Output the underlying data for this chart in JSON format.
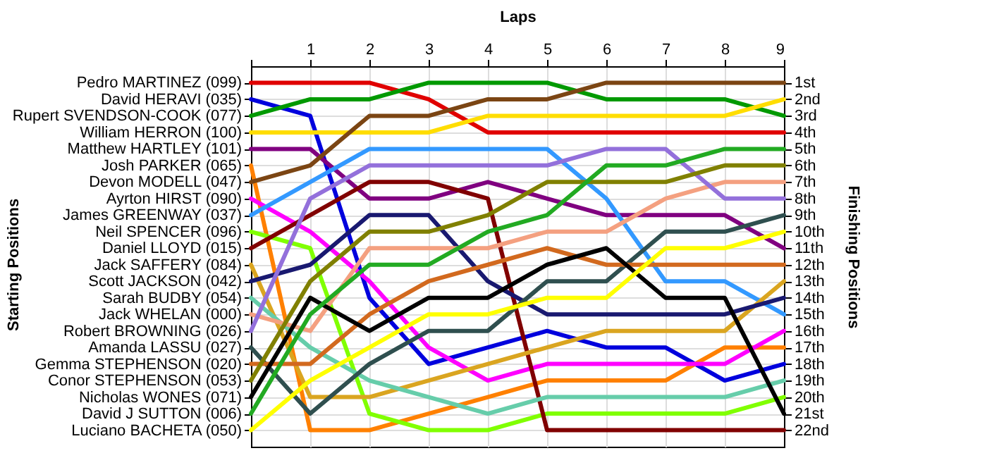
{
  "chart_data": {
    "type": "line",
    "xlabel": "Laps",
    "annotations": [
      "Starting Positions"
    ],
    "y2label": "Finishing Positions",
    "x": [
      0,
      1,
      2,
      3,
      4,
      5,
      6,
      7,
      8,
      9
    ],
    "xlim": [
      0,
      9
    ],
    "xticks": [
      {
        "value": 0,
        "label": null
      },
      1,
      2,
      3,
      4,
      5,
      6,
      7,
      8,
      9
    ],
    "y_categories": [
      "Pedro MARTINEZ (099)",
      "David HERAVI (035)",
      "Rupert SVENDSON-COOK (077)",
      "William HERRON (100)",
      "Matthew HARTLEY (101)",
      "Josh PARKER (065)",
      "Devon MODELL (047)",
      "Ayrton HIRST (090)",
      "James GREENWAY (037)",
      "Neil SPENCER (096)",
      "Daniel LLOYD (015)",
      "Jack SAFFERY (084)",
      "Scott JACKSON (042)",
      "Sarah BUDBY (054)",
      "Jack WHELAN (000)",
      "Robert BROWNING (026)",
      "Amanda LASSU (027)",
      "Gemma STEPHENSON (020)",
      "Conor STEPHENSON (053)",
      "Nicholas WONES (071)",
      "David J SUTTON (006)",
      "Luciano BACHETA (050)"
    ],
    "y2lim": [
      23,
      0
    ],
    "y2ticks": [
      {
        "value": 1,
        "label": "1st"
      },
      {
        "value": 2,
        "label": "2nd"
      },
      {
        "value": 3,
        "label": "3rd"
      },
      {
        "value": 4,
        "label": "4th"
      },
      {
        "value": 5,
        "label": "5th"
      },
      {
        "value": 6,
        "label": "6th"
      },
      {
        "value": 7,
        "label": "7th"
      },
      {
        "value": 8,
        "label": "8th"
      },
      {
        "value": 9,
        "label": "9th"
      },
      {
        "value": 10,
        "label": "10th"
      },
      {
        "value": 11,
        "label": "11th"
      },
      {
        "value": 12,
        "label": "12th"
      },
      {
        "value": 13,
        "label": "13th"
      },
      {
        "value": 14,
        "label": "14th"
      },
      {
        "value": 15,
        "label": "15th"
      },
      {
        "value": 16,
        "label": "16th"
      },
      {
        "value": 17,
        "label": "17th"
      },
      {
        "value": 18,
        "label": "18th"
      },
      {
        "value": 19,
        "label": "19th"
      },
      {
        "value": 20,
        "label": "20th"
      },
      {
        "value": 21,
        "label": "21st"
      },
      {
        "value": 22,
        "label": "22nd"
      }
    ],
    "grid": true,
    "line_style": "solid",
    "series": [
      {
        "axis": "y2",
        "color": "#e00000",
        "values": [
          1,
          1,
          1,
          2,
          4,
          4,
          4,
          4,
          4,
          4
        ]
      },
      {
        "axis": "y2",
        "color": "#0000dd",
        "values": [
          2,
          3,
          14,
          18,
          17,
          16,
          17,
          17,
          19,
          18
        ]
      },
      {
        "axis": "y2",
        "color": "#009900",
        "values": [
          3,
          2,
          2,
          1,
          1,
          1,
          2,
          2,
          2,
          3
        ]
      },
      {
        "axis": "y2",
        "color": "#ffdd00",
        "values": [
          4,
          4,
          4,
          4,
          3,
          3,
          3,
          3,
          3,
          2
        ]
      },
      {
        "axis": "y2",
        "color": "#800080",
        "values": [
          5,
          5,
          8,
          8,
          7,
          8,
          9,
          9,
          9,
          11
        ]
      },
      {
        "axis": "y2",
        "color": "#ff8000",
        "values": [
          6,
          22,
          22,
          21,
          20,
          19,
          19,
          19,
          17,
          17
        ]
      },
      {
        "axis": "y2",
        "color": "#7b4513",
        "values": [
          7,
          6,
          3,
          3,
          2,
          2,
          1,
          1,
          1,
          1
        ]
      },
      {
        "axis": "y2",
        "color": "#ff00ff",
        "values": [
          8,
          10,
          13,
          17,
          19,
          18,
          18,
          18,
          18,
          16
        ]
      },
      {
        "axis": "y2",
        "color": "#3399ff",
        "values": [
          9,
          7,
          5,
          5,
          5,
          5,
          8,
          13,
          13,
          15
        ]
      },
      {
        "axis": "y2",
        "color": "#80ff00",
        "values": [
          10,
          11,
          21,
          22,
          22,
          21,
          21,
          21,
          21,
          20
        ]
      },
      {
        "axis": "y2",
        "color": "#800000",
        "values": [
          11,
          9,
          7,
          7,
          8,
          22,
          22,
          22,
          22,
          22
        ]
      },
      {
        "axis": "y2",
        "color": "#daa520",
        "values": [
          12,
          20,
          20,
          19,
          18,
          17,
          16,
          16,
          16,
          13
        ]
      },
      {
        "axis": "y2",
        "color": "#191970",
        "values": [
          13,
          12,
          9,
          9,
          13,
          15,
          15,
          15,
          15,
          14
        ]
      },
      {
        "axis": "y2",
        "color": "#66cdaa",
        "values": [
          14,
          17,
          19,
          20,
          21,
          20,
          20,
          20,
          20,
          19
        ]
      },
      {
        "axis": "y2",
        "color": "#f4a080",
        "values": [
          15,
          16,
          11,
          11,
          11,
          10,
          10,
          8,
          7,
          7
        ]
      },
      {
        "axis": "y2",
        "color": "#9370db",
        "values": [
          16,
          8,
          6,
          6,
          6,
          6,
          5,
          5,
          8,
          8
        ]
      },
      {
        "axis": "y2",
        "color": "#2f4f4f",
        "values": [
          17,
          21,
          18,
          16,
          16,
          13,
          13,
          10,
          10,
          9
        ]
      },
      {
        "axis": "y2",
        "color": "#d2691e",
        "values": [
          18,
          18,
          15,
          13,
          12,
          11,
          12,
          12,
          12,
          12
        ]
      },
      {
        "axis": "y2",
        "color": "#808000",
        "values": [
          19,
          13,
          10,
          10,
          9,
          7,
          7,
          7,
          6,
          6
        ]
      },
      {
        "axis": "y2",
        "color": "#000000",
        "values": [
          20,
          14,
          16,
          14,
          14,
          12,
          11,
          14,
          14,
          21
        ]
      },
      {
        "axis": "y2",
        "color": "#22aa22",
        "values": [
          21,
          15,
          12,
          12,
          10,
          9,
          6,
          6,
          5,
          5
        ]
      },
      {
        "axis": "y2",
        "color": "#ffff00",
        "values": [
          22,
          19,
          17,
          15,
          15,
          14,
          14,
          11,
          11,
          10
        ]
      }
    ]
  }
}
